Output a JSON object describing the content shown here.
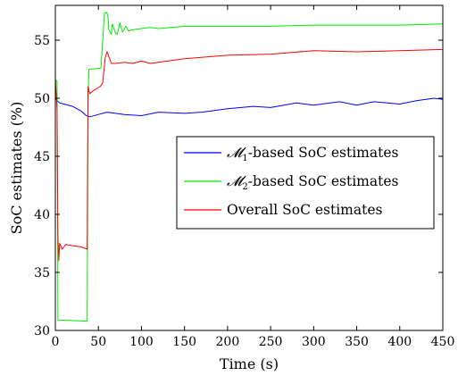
{
  "chart_data": {
    "type": "line",
    "xlabel": "Time (s)",
    "ylabel": "SoC estimates (%)",
    "xlim": [
      0,
      450
    ],
    "ylim": [
      30,
      58
    ],
    "xticks": [
      0,
      50,
      100,
      150,
      200,
      250,
      300,
      350,
      400,
      450
    ],
    "yticks": [
      30,
      35,
      40,
      45,
      50,
      55
    ],
    "grid": false,
    "legend_position": "center-right",
    "series": [
      {
        "name_prefix": "𝓜",
        "name_subscript": "1",
        "name_suffix": "-based SoC estimates",
        "color": "#0000ff",
        "x": [
          0,
          2,
          5,
          10,
          20,
          30,
          36,
          40,
          50,
          60,
          80,
          100,
          120,
          150,
          170,
          200,
          230,
          250,
          280,
          300,
          330,
          350,
          370,
          400,
          420,
          440,
          450
        ],
        "y": [
          50,
          49.8,
          49.6,
          49.5,
          49.3,
          48.9,
          48.5,
          48.4,
          48.6,
          48.8,
          48.6,
          48.5,
          48.8,
          48.7,
          48.8,
          49.1,
          49.3,
          49.2,
          49.6,
          49.4,
          49.7,
          49.4,
          49.7,
          49.5,
          49.8,
          50.0,
          49.9
        ]
      },
      {
        "name_prefix": "𝓜",
        "name_subscript": "2",
        "name_suffix": "-based SoC estimates",
        "color": "#00ee00",
        "x": [
          0,
          2,
          3,
          37,
          38,
          39,
          53,
          57,
          59,
          61,
          62,
          65,
          66,
          70,
          72,
          75,
          78,
          82,
          85,
          90,
          100,
          110,
          120,
          150,
          200,
          250,
          300,
          350,
          400,
          450
        ],
        "y": [
          51.5,
          51.5,
          30.9,
          30.8,
          49.6,
          52.5,
          52.6,
          57.3,
          57.4,
          57.2,
          55.9,
          55.5,
          56.4,
          55.6,
          55.5,
          56.5,
          55.7,
          56.2,
          55.8,
          55.9,
          56.0,
          56.1,
          56.0,
          56.2,
          56.2,
          56.2,
          56.3,
          56.3,
          56.3,
          56.4
        ]
      },
      {
        "name": "Overall SoC estimates",
        "color": "#ff0000",
        "x": [
          0,
          2,
          3,
          4,
          5,
          8,
          12,
          20,
          30,
          37,
          38,
          40,
          45,
          52,
          55,
          58,
          60,
          65,
          70,
          80,
          90,
          100,
          110,
          120,
          130,
          150,
          200,
          250,
          300,
          350,
          400,
          450
        ],
        "y": [
          51.8,
          49.0,
          38.0,
          36.0,
          37.5,
          37.0,
          37.4,
          37.3,
          37.2,
          37.0,
          51.0,
          50.4,
          50.7,
          51.0,
          51.3,
          53.5,
          54.0,
          53.0,
          53.0,
          53.1,
          53.0,
          53.2,
          53.0,
          53.1,
          53.2,
          53.4,
          53.7,
          53.8,
          54.1,
          54.0,
          54.1,
          54.2
        ]
      }
    ]
  }
}
